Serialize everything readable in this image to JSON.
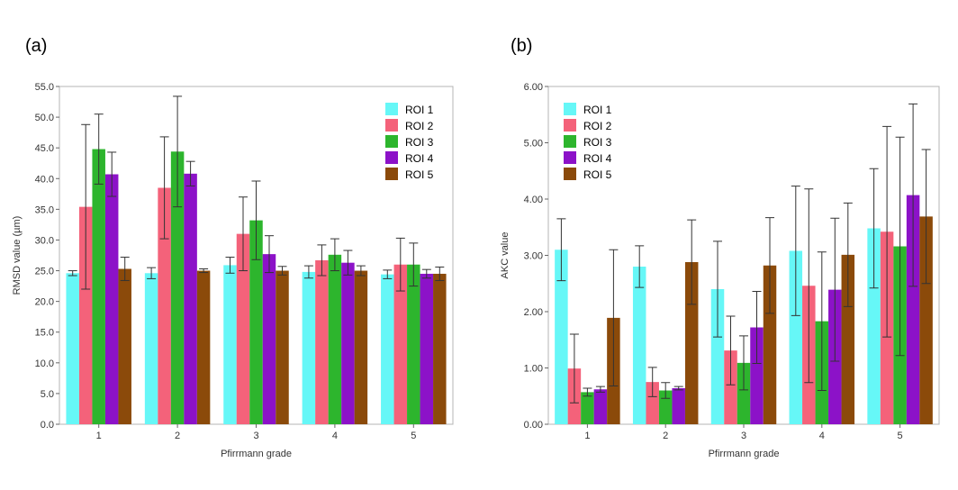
{
  "panels": {
    "a": "(a)",
    "b": "(b)"
  },
  "colors": [
    "#66f7f7",
    "#f4627a",
    "#2db52d",
    "#8c12c8",
    "#8b4a0a"
  ],
  "chart_data": [
    {
      "type": "bar",
      "title": "",
      "xlabel": "Pfirrmann grade",
      "ylabel": "RMSD value (µm)",
      "ylim": [
        0,
        55
      ],
      "yticks": [
        0,
        5,
        10,
        15,
        20,
        25,
        30,
        35,
        40,
        45,
        50,
        55
      ],
      "tick_decimals": 1,
      "categories": [
        "1",
        "2",
        "3",
        "4",
        "5"
      ],
      "legend_position": "top-right",
      "series": [
        {
          "name": "ROI 1",
          "values": [
            24.6,
            24.6,
            25.9,
            24.8,
            24.4
          ],
          "errors": [
            0.4,
            0.9,
            1.3,
            1.0,
            0.7
          ]
        },
        {
          "name": "ROI 2",
          "values": [
            35.4,
            38.5,
            31.0,
            26.7,
            26.0
          ],
          "errors": [
            13.4,
            8.3,
            6.0,
            2.5,
            4.3
          ]
        },
        {
          "name": "ROI 3",
          "values": [
            44.8,
            44.4,
            33.2,
            27.6,
            26.0
          ],
          "errors": [
            5.7,
            9.0,
            6.4,
            2.6,
            3.5
          ]
        },
        {
          "name": "ROI 4",
          "values": [
            40.7,
            40.8,
            27.7,
            26.3,
            24.5
          ],
          "errors": [
            3.6,
            2.0,
            3.0,
            2.0,
            0.7
          ]
        },
        {
          "name": "ROI 5",
          "values": [
            25.3,
            25.0,
            25.0,
            25.0,
            24.5
          ],
          "errors": [
            1.9,
            0.3,
            0.7,
            0.8,
            1.1
          ]
        }
      ]
    },
    {
      "type": "bar",
      "title": "",
      "xlabel": "Pfirrmann grade",
      "ylabel": "AKC value",
      "ylim": [
        0,
        6
      ],
      "yticks": [
        0,
        1,
        2,
        3,
        4,
        5,
        6
      ],
      "tick_decimals": 2,
      "categories": [
        "1",
        "2",
        "3",
        "4",
        "5"
      ],
      "legend_position": "top-left",
      "series": [
        {
          "name": "ROI 1",
          "values": [
            3.1,
            2.8,
            2.4,
            3.08,
            3.48
          ],
          "errors": [
            0.55,
            0.37,
            0.85,
            1.15,
            1.06
          ]
        },
        {
          "name": "ROI 2",
          "values": [
            0.99,
            0.75,
            1.31,
            2.46,
            3.42
          ],
          "errors": [
            0.61,
            0.26,
            0.61,
            1.72,
            1.87
          ]
        },
        {
          "name": "ROI 3",
          "values": [
            0.57,
            0.6,
            1.09,
            1.83,
            3.16
          ],
          "errors": [
            0.07,
            0.14,
            0.48,
            1.23,
            1.94
          ]
        },
        {
          "name": "ROI 4",
          "values": [
            0.62,
            0.64,
            1.72,
            2.39,
            4.07
          ],
          "errors": [
            0.05,
            0.03,
            0.64,
            1.27,
            1.62
          ]
        },
        {
          "name": "ROI 5",
          "values": [
            1.89,
            2.88,
            2.82,
            3.01,
            3.69
          ],
          "errors": [
            1.21,
            0.75,
            0.85,
            0.92,
            1.19
          ]
        }
      ]
    }
  ]
}
